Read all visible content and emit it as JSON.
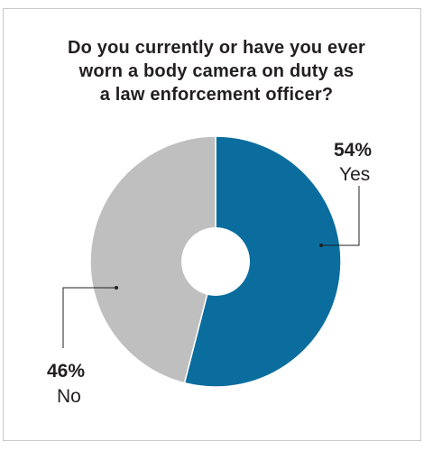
{
  "chart_data": {
    "type": "pie",
    "title_lines": [
      "Do you currently or have you ever",
      "worn a body camera on duty as",
      "a law enforcement officer?"
    ],
    "slices": [
      {
        "label": "Yes",
        "value": 54,
        "value_label": "54%",
        "color": "#0a6d9e"
      },
      {
        "label": "No",
        "value": 46,
        "value_label": "46%",
        "color": "#bfbfbf"
      }
    ],
    "donut": true,
    "legend": "none"
  }
}
